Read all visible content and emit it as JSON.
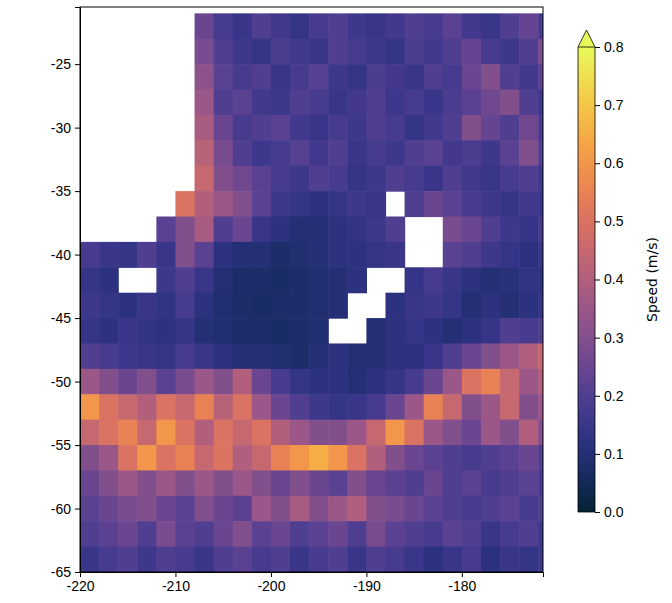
{
  "chart_data": {
    "type": "heatmap",
    "x": [
      -219,
      -217,
      -215,
      -213,
      -211,
      -209,
      -207,
      -205,
      -203,
      -201,
      -199,
      -197,
      -195,
      -193,
      -191,
      -189,
      -187,
      -185,
      -183,
      -181,
      -179,
      -177,
      -175,
      -173,
      -171
    ],
    "y": [
      -22,
      -24,
      -26,
      -28,
      -30,
      -32,
      -34,
      -36,
      -38,
      -40,
      -42,
      -44,
      -46,
      -48,
      -50,
      -52,
      -54,
      -56,
      -58,
      -60,
      -62,
      -64
    ],
    "z": [
      [
        null,
        null,
        null,
        null,
        null,
        null,
        0.25,
        0.18,
        0.15,
        0.2,
        0.17,
        0.14,
        0.18,
        0.2,
        0.16,
        0.15,
        0.17,
        0.2,
        0.18,
        0.22,
        0.17,
        0.15,
        0.2,
        0.24,
        0.18
      ],
      [
        null,
        null,
        null,
        null,
        null,
        null,
        0.28,
        0.2,
        0.16,
        0.14,
        0.19,
        0.17,
        0.15,
        0.2,
        0.18,
        0.16,
        0.14,
        0.19,
        0.17,
        0.2,
        0.24,
        0.18,
        0.16,
        0.2,
        0.28
      ],
      [
        null,
        null,
        null,
        null,
        null,
        null,
        0.32,
        0.22,
        0.18,
        0.2,
        0.15,
        0.18,
        0.21,
        0.16,
        0.14,
        0.19,
        0.17,
        0.15,
        0.2,
        0.18,
        0.25,
        0.3,
        0.2,
        0.17,
        0.22
      ],
      [
        null,
        null,
        null,
        null,
        null,
        null,
        0.35,
        0.2,
        0.22,
        0.17,
        0.16,
        0.2,
        0.18,
        0.15,
        0.17,
        0.2,
        0.16,
        0.18,
        0.15,
        0.19,
        0.22,
        0.26,
        0.3,
        0.2,
        0.16
      ],
      [
        null,
        null,
        null,
        null,
        null,
        null,
        0.38,
        0.25,
        0.18,
        0.2,
        0.22,
        0.17,
        0.15,
        0.18,
        0.16,
        0.2,
        0.18,
        0.14,
        0.17,
        0.2,
        0.3,
        0.24,
        0.2,
        0.26,
        0.18
      ],
      [
        null,
        null,
        null,
        null,
        null,
        null,
        0.42,
        0.28,
        0.2,
        0.16,
        0.18,
        0.21,
        0.17,
        0.2,
        0.15,
        0.18,
        0.16,
        0.2,
        0.22,
        0.17,
        0.19,
        0.16,
        0.22,
        0.3,
        0.2
      ],
      [
        null,
        null,
        null,
        null,
        null,
        null,
        0.45,
        0.3,
        0.26,
        0.22,
        0.18,
        0.16,
        0.2,
        0.18,
        0.14,
        0.16,
        0.2,
        0.18,
        0.15,
        0.2,
        0.17,
        0.15,
        0.18,
        0.2,
        0.16
      ],
      [
        null,
        null,
        null,
        null,
        null,
        0.5,
        0.4,
        0.35,
        0.3,
        0.22,
        0.16,
        0.14,
        0.12,
        0.14,
        0.16,
        0.15,
        null,
        0.2,
        0.25,
        0.22,
        0.18,
        0.16,
        0.14,
        0.17,
        0.15
      ],
      [
        null,
        null,
        null,
        null,
        0.22,
        0.3,
        0.38,
        0.2,
        0.25,
        0.15,
        0.12,
        0.1,
        0.1,
        0.12,
        0.13,
        0.16,
        0.2,
        null,
        null,
        0.28,
        0.25,
        0.2,
        0.16,
        0.14,
        0.18
      ],
      [
        0.18,
        0.15,
        0.14,
        0.2,
        0.15,
        0.3,
        0.22,
        0.12,
        0.1,
        0.1,
        0.08,
        0.09,
        0.1,
        0.12,
        0.12,
        0.14,
        0.15,
        null,
        null,
        0.22,
        0.2,
        0.16,
        0.14,
        0.12,
        0.15
      ],
      [
        0.14,
        0.12,
        null,
        null,
        0.16,
        0.2,
        0.15,
        0.1,
        0.08,
        0.08,
        0.07,
        0.08,
        0.09,
        0.1,
        0.12,
        null,
        null,
        0.14,
        0.18,
        0.15,
        0.12,
        0.1,
        0.11,
        0.13,
        0.12
      ],
      [
        0.16,
        0.14,
        0.12,
        0.15,
        0.13,
        0.18,
        0.12,
        0.09,
        0.08,
        0.07,
        0.08,
        0.08,
        0.09,
        0.1,
        null,
        null,
        0.12,
        0.15,
        0.16,
        0.14,
        0.1,
        0.12,
        0.1,
        0.12,
        0.14
      ],
      [
        0.14,
        0.12,
        0.15,
        0.13,
        0.12,
        0.14,
        0.1,
        0.09,
        0.08,
        0.08,
        0.07,
        0.08,
        0.09,
        null,
        null,
        0.1,
        0.12,
        0.14,
        0.12,
        0.1,
        0.12,
        0.14,
        0.2,
        0.18,
        0.2
      ],
      [
        0.2,
        0.18,
        0.16,
        0.15,
        0.14,
        0.18,
        0.15,
        0.12,
        0.1,
        0.1,
        0.09,
        0.08,
        0.1,
        0.12,
        0.1,
        0.1,
        0.12,
        0.12,
        0.15,
        0.2,
        0.25,
        0.3,
        0.35,
        0.4,
        0.45
      ],
      [
        0.35,
        0.3,
        0.25,
        0.3,
        0.22,
        0.28,
        0.35,
        0.3,
        0.4,
        0.25,
        0.18,
        0.14,
        0.12,
        0.12,
        0.1,
        0.12,
        0.14,
        0.18,
        0.25,
        0.35,
        0.5,
        0.55,
        0.45,
        0.35,
        0.4
      ],
      [
        0.6,
        0.5,
        0.45,
        0.4,
        0.5,
        0.45,
        0.55,
        0.42,
        0.5,
        0.35,
        0.25,
        0.2,
        0.16,
        0.14,
        0.15,
        0.18,
        0.25,
        0.35,
        0.55,
        0.45,
        0.3,
        0.35,
        0.45,
        0.3,
        0.35
      ],
      [
        0.45,
        0.5,
        0.55,
        0.45,
        0.6,
        0.5,
        0.4,
        0.5,
        0.45,
        0.5,
        0.4,
        0.35,
        0.3,
        0.3,
        0.35,
        0.45,
        0.6,
        0.5,
        0.35,
        0.3,
        0.25,
        0.35,
        0.3,
        0.4,
        0.3
      ],
      [
        0.3,
        0.35,
        0.5,
        0.6,
        0.5,
        0.55,
        0.45,
        0.5,
        0.4,
        0.45,
        0.55,
        0.6,
        0.65,
        0.6,
        0.5,
        0.4,
        0.3,
        0.25,
        0.22,
        0.2,
        0.18,
        0.2,
        0.22,
        0.25,
        0.2
      ],
      [
        0.25,
        0.3,
        0.35,
        0.3,
        0.35,
        0.3,
        0.35,
        0.3,
        0.35,
        0.3,
        0.25,
        0.3,
        0.25,
        0.22,
        0.3,
        0.25,
        0.22,
        0.2,
        0.25,
        0.2,
        0.22,
        0.18,
        0.2,
        0.22,
        0.18
      ],
      [
        0.22,
        0.25,
        0.28,
        0.3,
        0.25,
        0.22,
        0.3,
        0.25,
        0.22,
        0.35,
        0.3,
        0.38,
        0.3,
        0.35,
        0.4,
        0.3,
        0.28,
        0.25,
        0.22,
        0.2,
        0.18,
        0.2,
        0.22,
        0.18,
        0.2
      ],
      [
        0.2,
        0.22,
        0.25,
        0.2,
        0.28,
        0.22,
        0.2,
        0.25,
        0.3,
        0.22,
        0.25,
        0.2,
        0.22,
        0.25,
        0.2,
        0.28,
        0.22,
        0.2,
        0.18,
        0.22,
        0.2,
        0.15,
        0.18,
        0.2,
        0.16
      ],
      [
        0.15,
        0.18,
        0.2,
        0.16,
        0.2,
        0.18,
        0.15,
        0.2,
        0.22,
        0.18,
        0.2,
        0.15,
        0.18,
        0.2,
        0.15,
        0.2,
        0.18,
        0.15,
        0.12,
        0.15,
        0.18,
        0.12,
        0.15,
        0.14,
        0.16
      ]
    ],
    "xlim": [
      -220,
      -171.5
    ],
    "ylim": [
      -65,
      -20.5
    ],
    "xticks": [
      -220,
      -210,
      -200,
      -190,
      -180
    ],
    "yticks": [
      -65,
      -60,
      -55,
      -50,
      -45,
      -40,
      -35,
      -30,
      -25
    ],
    "colorbar": {
      "label": "Speed (m/s)",
      "range": [
        0,
        0.8
      ],
      "ticks": [
        {
          "value": 0,
          "label": "0.0"
        },
        0.1,
        0.2,
        0.3,
        0.4,
        0.5,
        0.6,
        0.7,
        0.8
      ]
    }
  }
}
